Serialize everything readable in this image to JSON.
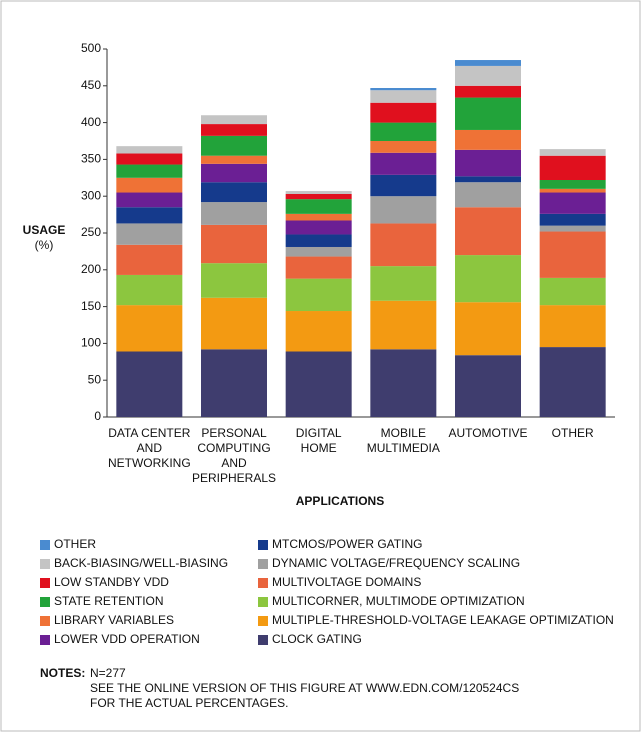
{
  "chart_data": {
    "type": "stacked_bar",
    "y_label": [
      "USAGE",
      "(%)"
    ],
    "x_label": "APPLICATIONS",
    "categories": [
      [
        "DATA CENTER",
        "AND",
        "NETWORKING"
      ],
      [
        "PERSONAL",
        "COMPUTING",
        "AND",
        "PERIPHERALS"
      ],
      [
        "DIGITAL",
        "HOME"
      ],
      [
        "MOBILE",
        "MULTIMEDIA"
      ],
      [
        "AUTOMOTIVE"
      ],
      [
        "OTHER"
      ]
    ],
    "ylim": [
      0,
      500
    ],
    "yticks": [
      0,
      50,
      100,
      150,
      200,
      250,
      300,
      350,
      400,
      450,
      500
    ],
    "series": [
      {
        "name": "CLOCK GATING",
        "color": "#3f3d6e",
        "values": [
          89,
          92,
          89,
          92,
          84,
          95
        ]
      },
      {
        "name": "MULTIPLE-THRESHOLD-VOLTAGE LEAKAGE OPTIMIZATION",
        "color": "#f39a12",
        "values": [
          63,
          70,
          55,
          66,
          72,
          57
        ]
      },
      {
        "name": "MULTICORNER, MULTIMODE OPTIMIZATION",
        "color": "#8cc63f",
        "values": [
          41,
          47,
          44,
          47,
          64,
          37
        ]
      },
      {
        "name": "MULTIVOLTAGE DOMAINS",
        "color": "#e9643d",
        "values": [
          41,
          52,
          30,
          58,
          65,
          63
        ]
      },
      {
        "name": "DYNAMIC VOLTAGE/FREQUENCY SCALING",
        "color": "#a0a0a0",
        "values": [
          29,
          31,
          13,
          37,
          34,
          8
        ]
      },
      {
        "name": "MTCMOS/POWER GATING",
        "color": "#153a8c",
        "values": [
          22,
          27,
          17,
          29,
          8,
          16
        ]
      },
      {
        "name": "LOWER VDD OPERATION",
        "color": "#6b1f94",
        "values": [
          20,
          25,
          19,
          30,
          36,
          29
        ]
      },
      {
        "name": "LIBRARY VARIABLES",
        "color": "#ef7236",
        "values": [
          20,
          11,
          9,
          16,
          27,
          5
        ]
      },
      {
        "name": "STATE RETENTION",
        "color": "#22a33a",
        "values": [
          18,
          27,
          20,
          25,
          44,
          12
        ]
      },
      {
        "name": "LOW STANDBY VDD",
        "color": "#e0101e",
        "values": [
          15,
          16,
          7,
          27,
          16,
          33
        ]
      },
      {
        "name": "BACK-BIASING/WELL-BIASING",
        "color": "#c4c4c4",
        "values": [
          10,
          12,
          4,
          17,
          27,
          9
        ]
      },
      {
        "name": "OTHER",
        "color": "#4a8bd0",
        "values": [
          0,
          0,
          0,
          3,
          8,
          0
        ]
      }
    ]
  },
  "notes": {
    "label": "NOTES:",
    "lines": [
      "N=277",
      "SEE THE ONLINE VERSION OF THIS FIGURE AT WWW.EDN.COM/120524CS",
      "FOR THE ACTUAL PERCENTAGES."
    ]
  }
}
